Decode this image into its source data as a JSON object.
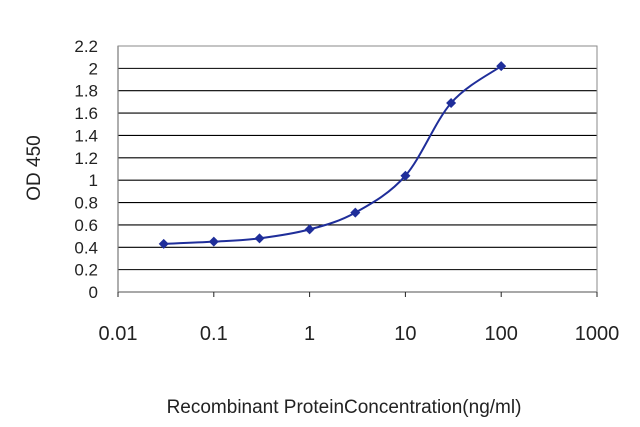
{
  "chart_data": {
    "type": "line",
    "title": "",
    "xlabel": "Recombinant ProteinConcentration(ng/ml)",
    "ylabel": "OD 450",
    "x_scale": "log",
    "xlim": [
      0.01,
      1000
    ],
    "ylim": [
      0,
      2.2
    ],
    "grid": "horizontal",
    "legend": "none",
    "x_ticks": [
      "0.01",
      "0.1",
      "1",
      "10",
      "100",
      "1000"
    ],
    "y_ticks": [
      "0",
      "0.2",
      "0.4",
      "0.6",
      "0.8",
      "1",
      "1.2",
      "1.4",
      "1.6",
      "1.8",
      "2",
      "2.2"
    ],
    "series": [
      {
        "x": [
          0.03,
          0.1,
          0.3,
          1,
          3,
          10,
          30,
          100
        ],
        "y": [
          0.43,
          0.45,
          0.48,
          0.56,
          0.71,
          1.04,
          1.69,
          2.02
        ]
      }
    ],
    "colors": {
      "plot_background": "#ffffff",
      "gridline": "#000000",
      "series": "#1f2e9a"
    }
  }
}
